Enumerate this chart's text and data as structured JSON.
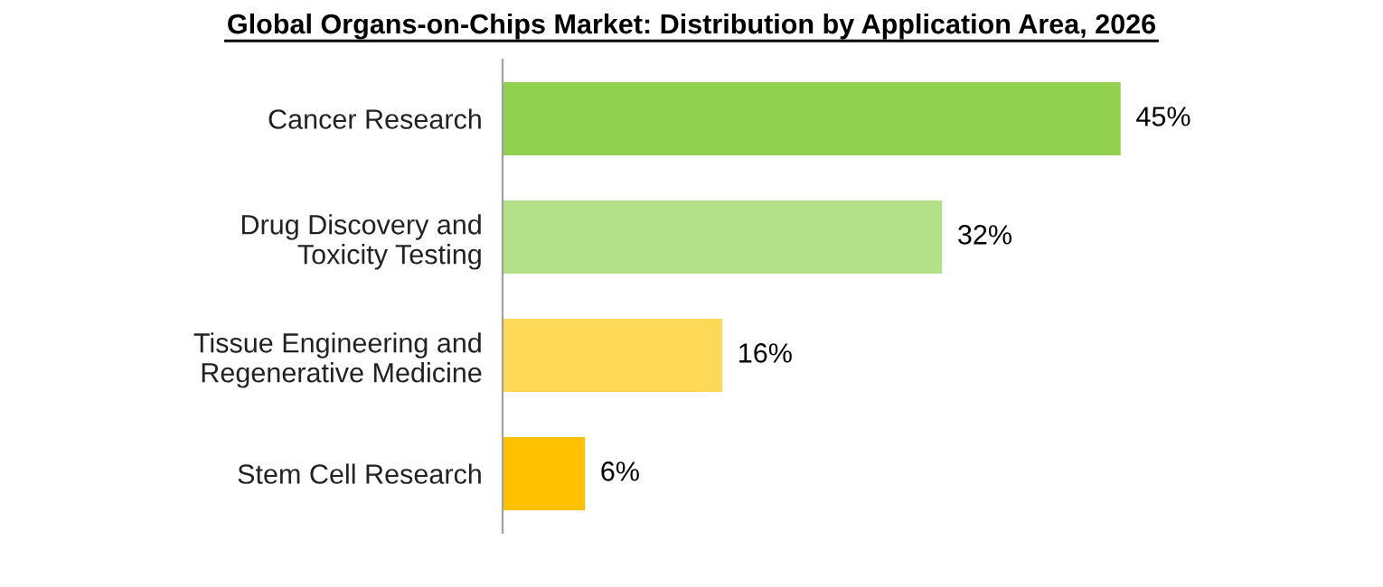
{
  "chart_data": {
    "type": "bar",
    "orientation": "horizontal",
    "title": "Global Organs-on-Chips Market: Distribution by Application Area, 2026",
    "categories": [
      "Cancer Research",
      "Drug Discovery and\nToxicity Testing",
      "Tissue Engineering and\nRegenerative Medicine",
      "Stem Cell Research"
    ],
    "values": [
      45,
      32,
      16,
      6
    ],
    "colors": [
      "#92d050",
      "#b5e08a",
      "#ffd957",
      "#ffc000"
    ],
    "value_labels": [
      "45%",
      "32%",
      "16%",
      "6%"
    ],
    "grid": false,
    "legend": false
  }
}
